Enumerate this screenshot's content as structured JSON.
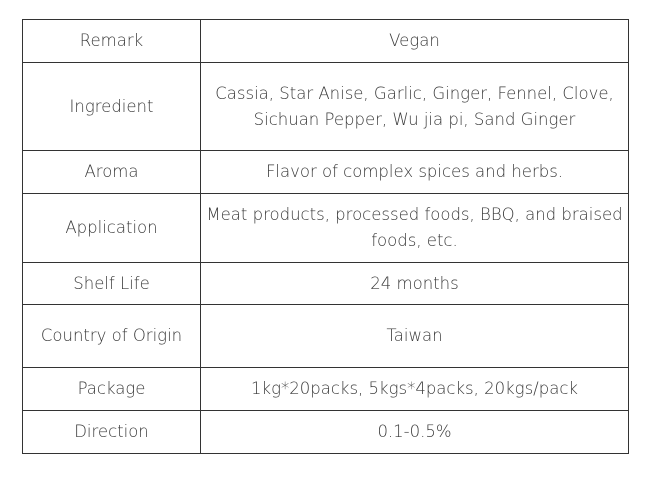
{
  "spec_table": {
    "rows": [
      {
        "label": "Remark",
        "value": "Vegan"
      },
      {
        "label": "Ingredient",
        "value": "Cassia, Star Anise, Garlic, Ginger, Fennel, Clove, Sichuan Pepper, Wu jia pi, Sand Ginger"
      },
      {
        "label": "Aroma",
        "value": "Flavor of complex spices and herbs."
      },
      {
        "label": "Application",
        "value": "Meat products, processed foods, BBQ, and braised foods, etc."
      },
      {
        "label": "Shelf Life",
        "value": "24 months"
      },
      {
        "label": "Country of Origin",
        "value": "Taiwan"
      },
      {
        "label": "Package",
        "value": "1kg*20packs, 5kgs*4packs, 20kgs/pack"
      },
      {
        "label": "Direction",
        "value": "0.1-0.5%"
      }
    ]
  }
}
